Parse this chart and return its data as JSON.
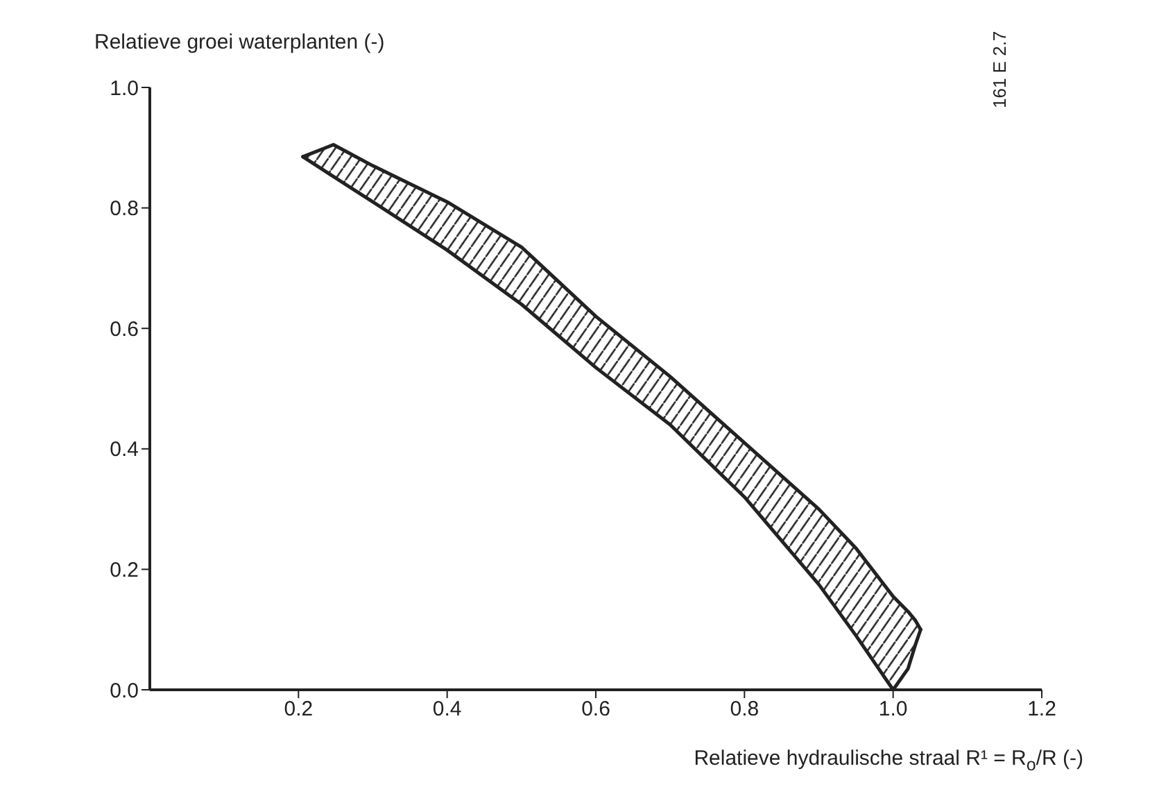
{
  "chart_data": {
    "type": "line",
    "ylabel": "Relatieve groei waterplanten (-)",
    "xlabel": "Relatieve hydraulische straal R¹ = R$_{o}$/R (-)",
    "annotations": [
      "161 E 2.7"
    ],
    "x": [
      0.206,
      0.247,
      0.3,
      0.4,
      0.5,
      0.6,
      0.7,
      0.8,
      0.9,
      0.95,
      1.0,
      1.02,
      1.03,
      1.037
    ],
    "series": [
      {
        "color": "#222222",
        "values": [
          0.885,
          0.905,
          0.87,
          0.81,
          0.735,
          0.62,
          0.52,
          0.41,
          0.3,
          0.235,
          0.155,
          0.13,
          0.115,
          0.1
        ],
        "lower": [
          0.885,
          0.852,
          0.81,
          0.73,
          0.64,
          0.535,
          0.44,
          0.32,
          0.175,
          0.09,
          0.0,
          0.035,
          0.075,
          0.1
        ],
        "upper": [
          0.885,
          0.905,
          0.87,
          0.81,
          0.735,
          0.62,
          0.52,
          0.41,
          0.3,
          0.235,
          0.155,
          0.13,
          0.115,
          0.1
        ]
      },
      {
        "color": "#222222",
        "values": [
          0.885,
          0.852,
          0.81,
          0.73,
          0.64,
          0.535,
          0.44,
          0.32,
          0.175,
          0.09,
          0.0,
          0.035,
          0.075,
          0.1
        ]
      }
    ],
    "xlim": [
      0,
      1.2
    ],
    "xticks": [
      0.2,
      0.4,
      0.6,
      0.8,
      {
        "value": 1.0,
        "label": "1.0"
      },
      1.2
    ],
    "ylim": [
      0,
      1.0
    ],
    "yticks": [
      {
        "value": 0,
        "label": "0.0"
      },
      0.2,
      0.4,
      0.6,
      0.8,
      {
        "value": 1.0,
        "label": "1.0"
      }
    ],
    "marker": "none",
    "line_style": "solid",
    "grid": false,
    "legend": false
  }
}
